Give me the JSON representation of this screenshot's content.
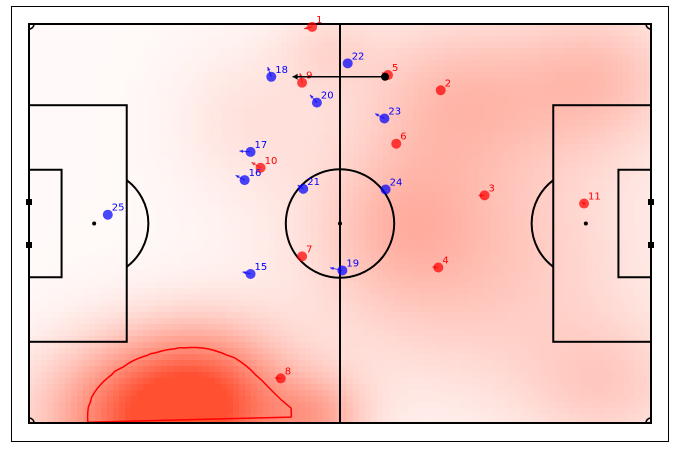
{
  "colors": {
    "team_red": "#ff0000",
    "team_blue": "#0000ff",
    "ball": "#000000",
    "pitch_lines": "#000000",
    "contour": "#ff0000"
  },
  "pitch": {
    "field_length": 105,
    "field_width": 68
  },
  "ball": {
    "x": 7.6,
    "y": 25.0,
    "vx": -15.6,
    "vy": 0.0
  },
  "players": [
    {
      "team": "red",
      "number": "1",
      "x": -4.7,
      "y": 33.5,
      "vx": -2.7,
      "vy": -0.6
    },
    {
      "team": "red",
      "number": "2",
      "x": 17.0,
      "y": 22.7,
      "vx": 0.0,
      "vy": 0.0
    },
    {
      "team": "red",
      "number": "3",
      "x": 24.4,
      "y": 4.8,
      "vx": -2.0,
      "vy": 0.0
    },
    {
      "team": "red",
      "number": "4",
      "x": 16.6,
      "y": -7.5,
      "vx": -2.0,
      "vy": 0.2
    },
    {
      "team": "red",
      "number": "5",
      "x": 8.1,
      "y": 25.3,
      "vx": -2.0,
      "vy": 0.8
    },
    {
      "team": "red",
      "number": "6",
      "x": 9.5,
      "y": 13.6,
      "vx": 0.0,
      "vy": 0.0
    },
    {
      "team": "red",
      "number": "7",
      "x": -6.4,
      "y": -5.6,
      "vx": 0.0,
      "vy": 0.0
    },
    {
      "team": "red",
      "number": "8",
      "x": -10.0,
      "y": -26.4,
      "vx": -2.0,
      "vy": 0.2
    },
    {
      "team": "red",
      "number": "9",
      "x": -6.4,
      "y": 24.0,
      "vx": -0.7,
      "vy": 3.2
    },
    {
      "team": "red",
      "number": "10",
      "x": -13.4,
      "y": 9.5,
      "vx": -3.0,
      "vy": 1.8
    },
    {
      "team": "red",
      "number": "11",
      "x": 41.2,
      "y": 3.4,
      "vx": -0.7,
      "vy": 0.5
    },
    {
      "team": "blue",
      "number": "15",
      "x": -15.1,
      "y": -8.6,
      "vx": -2.7,
      "vy": 0.7
    },
    {
      "team": "blue",
      "number": "16",
      "x": -16.1,
      "y": 7.4,
      "vx": -3.0,
      "vy": 1.6
    },
    {
      "team": "blue",
      "number": "17",
      "x": -15.1,
      "y": 12.2,
      "vx": -3.7,
      "vy": 0.3
    },
    {
      "team": "blue",
      "number": "18",
      "x": -11.6,
      "y": 25.0,
      "vx": -1.2,
      "vy": 3.3
    },
    {
      "team": "blue",
      "number": "19",
      "x": 0.4,
      "y": -8.0,
      "vx": -4.1,
      "vy": 0.9
    },
    {
      "team": "blue",
      "number": "20",
      "x": -3.9,
      "y": 20.6,
      "vx": -2.3,
      "vy": 2.6
    },
    {
      "team": "blue",
      "number": "21",
      "x": -6.2,
      "y": 5.9,
      "vx": -1.9,
      "vy": 1.3
    },
    {
      "team": "blue",
      "number": "22",
      "x": 1.3,
      "y": 27.3,
      "vx": 0.0,
      "vy": 0.0
    },
    {
      "team": "blue",
      "number": "23",
      "x": 7.5,
      "y": 17.9,
      "vx": -3.1,
      "vy": 1.6
    },
    {
      "team": "blue",
      "number": "24",
      "x": 7.7,
      "y": 5.8,
      "vx": 0.0,
      "vy": 0.0
    },
    {
      "team": "blue",
      "number": "25",
      "x": -39.2,
      "y": 1.5,
      "vx": 0.0,
      "vy": 0.0
    }
  ],
  "heatmap": {
    "blobs": [
      {
        "x": -30.0,
        "y": -33.0,
        "sx": 13.0,
        "sy": 9.0,
        "w": 0.95
      },
      {
        "x": -22.0,
        "y": -28.0,
        "sx": 9.0,
        "sy": 8.0,
        "w": 0.35
      },
      {
        "x": -4.0,
        "y": -33.0,
        "sx": 6.0,
        "sy": 5.0,
        "w": 0.35
      },
      {
        "x": 22.0,
        "y": -6.0,
        "sx": 20.0,
        "sy": 16.0,
        "w": 0.3
      },
      {
        "x": 20.0,
        "y": 22.0,
        "sx": 12.0,
        "sy": 10.0,
        "w": 0.3
      },
      {
        "x": 44.0,
        "y": 25.0,
        "sx": 10.0,
        "sy": 9.0,
        "w": 0.3
      },
      {
        "x": 45.0,
        "y": -28.0,
        "sx": 10.0,
        "sy": 8.0,
        "w": 0.22
      },
      {
        "x": 10.0,
        "y": 0.0,
        "sx": 9.0,
        "sy": 9.0,
        "w": 0.18
      },
      {
        "x": -15.0,
        "y": 18.0,
        "sx": 9.0,
        "sy": 9.0,
        "w": 0.12
      },
      {
        "x": -2.0,
        "y": 30.0,
        "sx": 6.0,
        "sy": 5.0,
        "w": 0.14
      }
    ],
    "base": 0.03
  },
  "contour_level": 0.65
}
